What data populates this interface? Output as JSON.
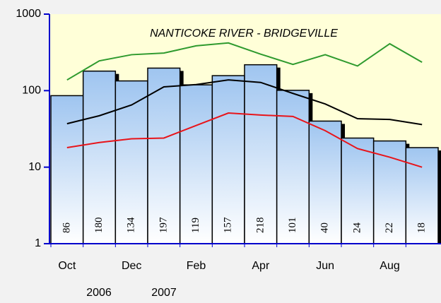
{
  "chart_data": {
    "type": "bar",
    "title": "NANTICOKE RIVER - BRIDGEVILLE",
    "categories": [
      "Oct",
      null,
      "Dec",
      null,
      "Feb",
      null,
      "Apr",
      null,
      "Jun",
      null,
      "Aug",
      null
    ],
    "values": [
      86,
      180,
      134,
      197,
      119,
      157,
      218,
      101,
      40,
      24,
      22,
      18
    ],
    "color": "#9fc5f0",
    "lines": [
      {
        "color": "#2e9a2e",
        "values": [
          138,
          245,
          295,
          310,
          385,
          420,
          300,
          220,
          295,
          210,
          410,
          235
        ]
      },
      {
        "color": "#000000",
        "values": [
          37,
          47,
          65,
          112,
          120,
          138,
          128,
          92,
          67,
          43,
          42,
          36
        ]
      },
      {
        "color": "#e8141a",
        "values": [
          18,
          21,
          23.5,
          24,
          35,
          51,
          48,
          46,
          30,
          17.5,
          13.5,
          10
        ]
      }
    ],
    "year_labels": [
      "2006",
      "2007"
    ],
    "ylim": [
      1,
      1000
    ],
    "yticks": [
      1,
      10,
      100,
      1000
    ],
    "log_scale": true
  }
}
